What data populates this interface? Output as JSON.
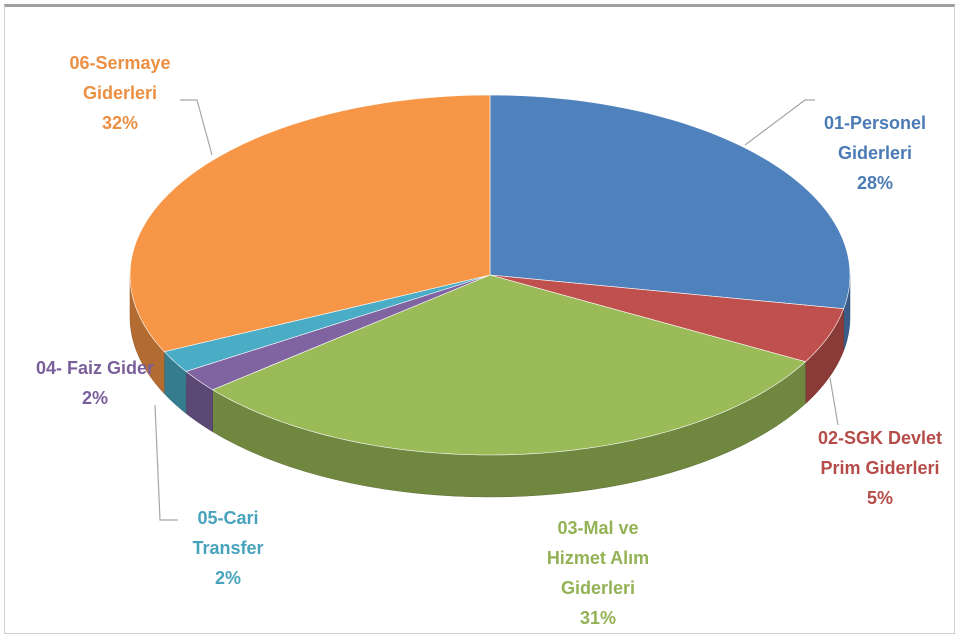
{
  "chart_data": {
    "type": "pie",
    "categories": [
      "01-Personel Giderleri",
      "02-SGK Devlet Prim Giderleri",
      "03-Mal ve Hizmet Alım Giderleri",
      "04- Faiz Gider",
      "05-Cari Transfer",
      "06-Sermaye Giderleri"
    ],
    "values": [
      28,
      5,
      31,
      2,
      2,
      32
    ],
    "value_labels": [
      "28%",
      "5%",
      "31%",
      "2%",
      "2%",
      "32%"
    ],
    "colors": [
      "#4f81bd",
      "#c0504d",
      "#9bbb59",
      "#8064a2",
      "#4bacc6",
      "#f79646"
    ]
  }
}
